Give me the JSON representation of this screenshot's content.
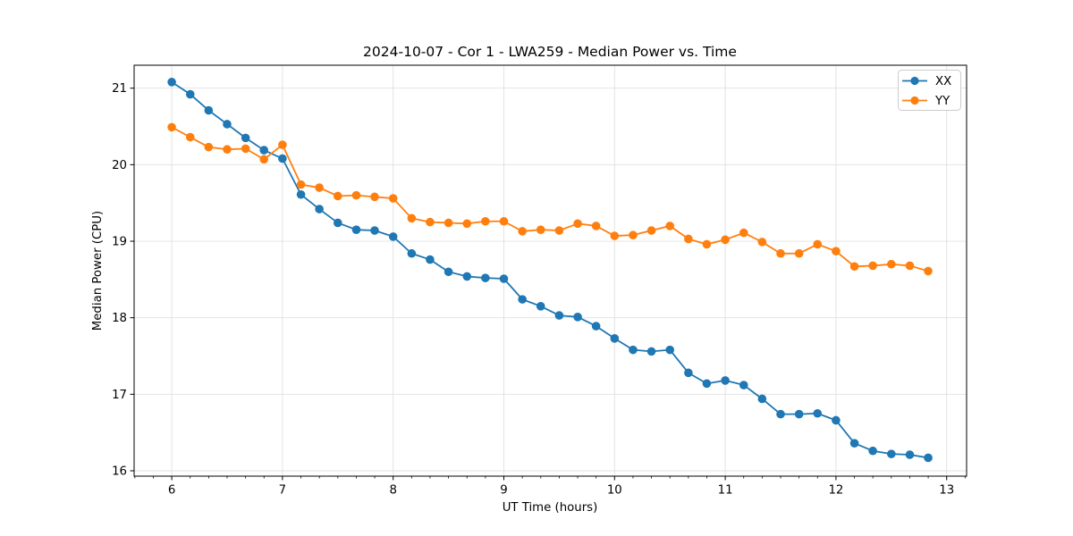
{
  "figure": {
    "background": "#ffffff"
  },
  "chart_data": {
    "type": "line",
    "title": "2024-10-07 - Cor 1 - LWA259 - Median Power vs. Time",
    "xlabel": "UT Time (hours)",
    "ylabel": "Median Power (CPU)",
    "xlim": [
      5.66,
      13.18
    ],
    "ylim": [
      15.93,
      21.3
    ],
    "xticks": [
      6,
      7,
      8,
      9,
      10,
      11,
      12,
      13
    ],
    "yticks": [
      16,
      17,
      18,
      19,
      20,
      21
    ],
    "minor_xtick_step_hours": 0.1667,
    "grid": true,
    "grid_color": "#e0e0e0",
    "spine_color": "#000000",
    "legend_position": "upper right",
    "x": [
      6.0,
      6.167,
      6.333,
      6.5,
      6.667,
      6.833,
      7.0,
      7.167,
      7.333,
      7.5,
      7.667,
      7.833,
      8.0,
      8.167,
      8.333,
      8.5,
      8.667,
      8.833,
      9.0,
      9.167,
      9.333,
      9.5,
      9.667,
      9.833,
      10.0,
      10.167,
      10.333,
      10.5,
      10.667,
      10.833,
      11.0,
      11.167,
      11.333,
      11.5,
      11.667,
      11.833,
      12.0,
      12.167,
      12.333,
      12.5,
      12.667,
      12.833
    ],
    "series": [
      {
        "name": "XX",
        "color": "#1f77b4",
        "values": [
          21.08,
          20.92,
          20.71,
          20.53,
          20.35,
          20.19,
          20.08,
          19.61,
          19.42,
          19.24,
          19.15,
          19.14,
          19.06,
          18.84,
          18.76,
          18.6,
          18.54,
          18.52,
          18.51,
          18.24,
          18.15,
          18.03,
          18.01,
          17.89,
          17.73,
          17.58,
          17.56,
          17.58,
          17.28,
          17.14,
          17.18,
          17.12,
          16.94,
          16.74,
          16.74,
          16.75,
          16.66,
          16.36,
          16.26,
          16.22,
          16.21,
          16.17
        ]
      },
      {
        "name": "YY",
        "color": "#ff7f0e",
        "values": [
          20.49,
          20.36,
          20.23,
          20.2,
          20.21,
          20.07,
          20.26,
          19.74,
          19.7,
          19.59,
          19.6,
          19.58,
          19.56,
          19.3,
          19.25,
          19.24,
          19.23,
          19.26,
          19.26,
          19.13,
          19.15,
          19.14,
          19.23,
          19.2,
          19.07,
          19.08,
          19.14,
          19.2,
          19.03,
          18.96,
          19.02,
          19.11,
          18.99,
          18.84,
          18.84,
          18.96,
          18.87,
          18.67,
          18.68,
          18.7,
          18.68,
          18.61
        ]
      }
    ]
  }
}
